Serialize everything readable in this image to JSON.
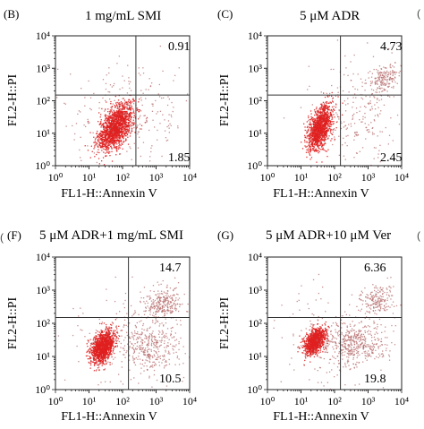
{
  "figure": {
    "left_fragment": "(",
    "right_fragment_top": "(",
    "right_fragment_bottom": "("
  },
  "chart_data": [
    {
      "type": "scatter",
      "panel_letter": "(B)",
      "title": "1 mg/mL  SMI",
      "xlabel": "FL1-H::Annexin V",
      "ylabel": "FL2-H::PI",
      "x_scale": "log",
      "y_scale": "log",
      "xlim": [
        1,
        10000
      ],
      "ylim": [
        1,
        10000
      ],
      "x_ticks": [
        "10⁰",
        "10¹",
        "10²",
        "10³",
        "10⁴"
      ],
      "y_ticks": [
        "10⁰",
        "10¹",
        "10²",
        "10³",
        "10⁴"
      ],
      "gate": {
        "x": 250,
        "y": 150
      },
      "quadrant_values": {
        "upper_right": "0.91",
        "lower_right": "1.85"
      },
      "populations": [
        {
          "name": "live",
          "center": [
            60,
            16
          ],
          "spread_log": [
            0.26,
            0.3
          ],
          "n": 1600,
          "color": "#e02020",
          "tilt": 0.75
        },
        {
          "name": "scatter",
          "center": [
            150,
            40
          ],
          "spread_log": [
            0.9,
            0.9
          ],
          "n": 260,
          "color": "#b46a6a",
          "tilt": 0.1
        }
      ]
    },
    {
      "type": "scatter",
      "panel_letter": "(C)",
      "title": "5 μM ADR",
      "xlabel": "FL1-H::Annexin V",
      "ylabel": "FL2-H::PI",
      "x_scale": "log",
      "y_scale": "log",
      "xlim": [
        1,
        10000
      ],
      "ylim": [
        1,
        10000
      ],
      "x_ticks": [
        "10⁰",
        "10¹",
        "10²",
        "10³",
        "10⁴"
      ],
      "y_ticks": [
        "10⁰",
        "10¹",
        "10²",
        "10³",
        "10⁴"
      ],
      "gate": {
        "x": 150,
        "y": 150
      },
      "quadrant_values": {
        "upper_right": "4.73",
        "lower_right": "2.45"
      },
      "populations": [
        {
          "name": "live",
          "center": [
            35,
            15
          ],
          "spread_log": [
            0.18,
            0.3
          ],
          "n": 1300,
          "color": "#e02020",
          "tilt": 0.85
        },
        {
          "name": "late-apoptotic",
          "center": [
            3000,
            500
          ],
          "spread_log": [
            0.22,
            0.22
          ],
          "n": 170,
          "color": "#b46a6a",
          "tilt": 0.4
        },
        {
          "name": "scatter",
          "center": [
            400,
            50
          ],
          "spread_log": [
            0.8,
            0.8
          ],
          "n": 260,
          "color": "#b46a6a",
          "tilt": 0.1
        }
      ]
    },
    {
      "type": "scatter",
      "panel_letter": "(F)",
      "title": "5 μM ADR+1 mg/mL  SMI",
      "xlabel": "FL1-H::Annexin V",
      "ylabel": "FL2-H::PI",
      "x_scale": "log",
      "y_scale": "log",
      "xlim": [
        1,
        10000
      ],
      "ylim": [
        1,
        10000
      ],
      "x_ticks": [
        "10⁰",
        "10¹",
        "10²",
        "10³",
        "10⁴"
      ],
      "y_ticks": [
        "10⁰",
        "10¹",
        "10²",
        "10³",
        "10⁴"
      ],
      "gate": {
        "x": 150,
        "y": 150
      },
      "quadrant_values": {
        "upper_right": "14.7",
        "lower_right": "10.5"
      },
      "populations": [
        {
          "name": "live",
          "center": [
            25,
            20
          ],
          "spread_log": [
            0.17,
            0.22
          ],
          "n": 1300,
          "color": "#e02020",
          "tilt": 0.6
        },
        {
          "name": "late-apoptotic",
          "center": [
            1500,
            400
          ],
          "spread_log": [
            0.3,
            0.25
          ],
          "n": 260,
          "color": "#b46a6a",
          "tilt": 0.2
        },
        {
          "name": "early-apoptotic",
          "center": [
            600,
            20
          ],
          "spread_log": [
            0.45,
            0.35
          ],
          "n": 320,
          "color": "#b46a6a",
          "tilt": 0.0
        },
        {
          "name": "scatter",
          "center": [
            150,
            40
          ],
          "spread_log": [
            0.9,
            0.8
          ],
          "n": 200,
          "color": "#b46a6a",
          "tilt": 0.1
        }
      ]
    },
    {
      "type": "scatter",
      "panel_letter": "(G)",
      "title": "5 μM ADR+10 μM Ver",
      "xlabel": "FL1-H::Annexin V",
      "ylabel": "FL2-H::PI",
      "x_scale": "log",
      "y_scale": "log",
      "xlim": [
        1,
        10000
      ],
      "ylim": [
        1,
        10000
      ],
      "x_ticks": [
        "10⁰",
        "10¹",
        "10²",
        "10³",
        "10⁴"
      ],
      "y_ticks": [
        "10⁰",
        "10¹",
        "10²",
        "10³",
        "10⁴"
      ],
      "gate": {
        "x": 150,
        "y": 150
      },
      "quadrant_values": {
        "upper_right": "6.36",
        "lower_right": "19.8"
      },
      "populations": [
        {
          "name": "live",
          "center": [
            25,
            30
          ],
          "spread_log": [
            0.16,
            0.18
          ],
          "n": 1100,
          "color": "#e02020",
          "tilt": 0.5
        },
        {
          "name": "early-apoptotic",
          "center": [
            350,
            25
          ],
          "spread_log": [
            0.5,
            0.32
          ],
          "n": 420,
          "color": "#b46a6a",
          "tilt": 0.0
        },
        {
          "name": "late-apoptotic",
          "center": [
            1800,
            500
          ],
          "spread_log": [
            0.25,
            0.22
          ],
          "n": 180,
          "color": "#b46a6a",
          "tilt": 0.2
        },
        {
          "name": "scatter",
          "center": [
            150,
            40
          ],
          "spread_log": [
            0.9,
            0.8
          ],
          "n": 180,
          "color": "#b46a6a",
          "tilt": 0.1
        }
      ]
    }
  ]
}
